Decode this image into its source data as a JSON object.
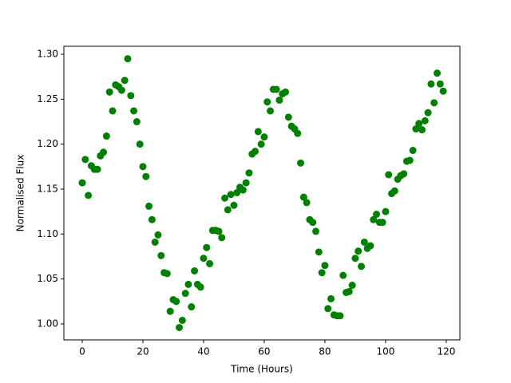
{
  "chart_data": {
    "type": "scatter",
    "xlabel": "Time (Hours)",
    "ylabel": "Normalised Flux",
    "color": "#008000",
    "grid": false,
    "xlim": [
      -6.05,
      124.5
    ],
    "ylim": [
      0.9822,
      1.3089
    ],
    "xticks": [
      0,
      20,
      40,
      60,
      80,
      100,
      120
    ],
    "yticks": [
      {
        "value": 1.0,
        "label": "1.00"
      },
      1.05,
      {
        "value": 1.1,
        "label": "1.10"
      },
      1.15,
      {
        "value": 1.2,
        "label": "1.20"
      },
      1.25,
      {
        "value": 1.3,
        "label": "1.30"
      }
    ],
    "x": [
      0,
      1,
      2,
      3,
      4,
      5,
      6,
      7,
      8,
      9,
      10,
      11,
      12,
      13,
      14,
      15,
      16,
      17,
      18,
      19,
      20,
      21,
      22,
      23,
      24,
      25,
      26,
      27,
      28,
      29,
      30,
      31,
      32,
      33,
      34,
      35,
      36,
      37,
      38,
      39,
      40,
      41,
      42,
      43,
      44,
      45,
      46,
      47,
      48,
      49,
      50,
      51,
      52,
      53,
      54,
      55,
      56,
      57,
      58,
      59,
      60,
      61,
      62,
      63,
      64,
      65,
      66,
      67,
      68,
      69,
      70,
      71,
      72,
      73,
      74,
      75,
      76,
      77,
      78,
      79,
      80,
      81,
      82,
      83,
      84,
      85,
      86,
      87,
      88,
      89,
      90,
      91,
      92,
      93,
      94,
      95,
      96,
      97,
      98,
      99,
      100,
      101,
      102,
      103,
      104,
      105,
      106,
      107,
      108,
      109,
      110,
      111,
      112,
      113,
      114,
      115,
      116,
      117,
      118,
      119
    ],
    "values": [
      1.157,
      1.183,
      1.143,
      1.176,
      1.172,
      1.172,
      1.187,
      1.191,
      1.209,
      1.258,
      1.237,
      1.266,
      1.264,
      1.26,
      1.271,
      1.295,
      1.254,
      1.237,
      1.225,
      1.2,
      1.175,
      1.164,
      1.131,
      1.116,
      1.091,
      1.099,
      1.076,
      1.057,
      1.056,
      1.014,
      1.027,
      1.025,
      0.996,
      1.004,
      1.034,
      1.044,
      1.019,
      1.059,
      1.044,
      1.041,
      1.073,
      1.085,
      1.067,
      1.104,
      1.104,
      1.103,
      1.096,
      1.14,
      1.127,
      1.144,
      1.132,
      1.146,
      1.152,
      1.149,
      1.157,
      1.168,
      1.189,
      1.192,
      1.214,
      1.2,
      1.208,
      1.247,
      1.237,
      1.261,
      1.261,
      1.249,
      1.256,
      1.258,
      1.23,
      1.22,
      1.217,
      1.212,
      1.179,
      1.141,
      1.135,
      1.116,
      1.113,
      1.103,
      1.08,
      1.057,
      1.065,
      1.017,
      1.028,
      1.01,
      1.009,
      1.009,
      1.054,
      1.035,
      1.036,
      1.043,
      1.073,
      1.081,
      1.064,
      1.091,
      1.084,
      1.087,
      1.116,
      1.122,
      1.113,
      1.113,
      1.125,
      1.166,
      1.145,
      1.148,
      1.161,
      1.165,
      1.167,
      1.181,
      1.182,
      1.193,
      1.217,
      1.223,
      1.216,
      1.226,
      1.235,
      1.267,
      1.246,
      1.279,
      1.267,
      1.259
    ]
  }
}
